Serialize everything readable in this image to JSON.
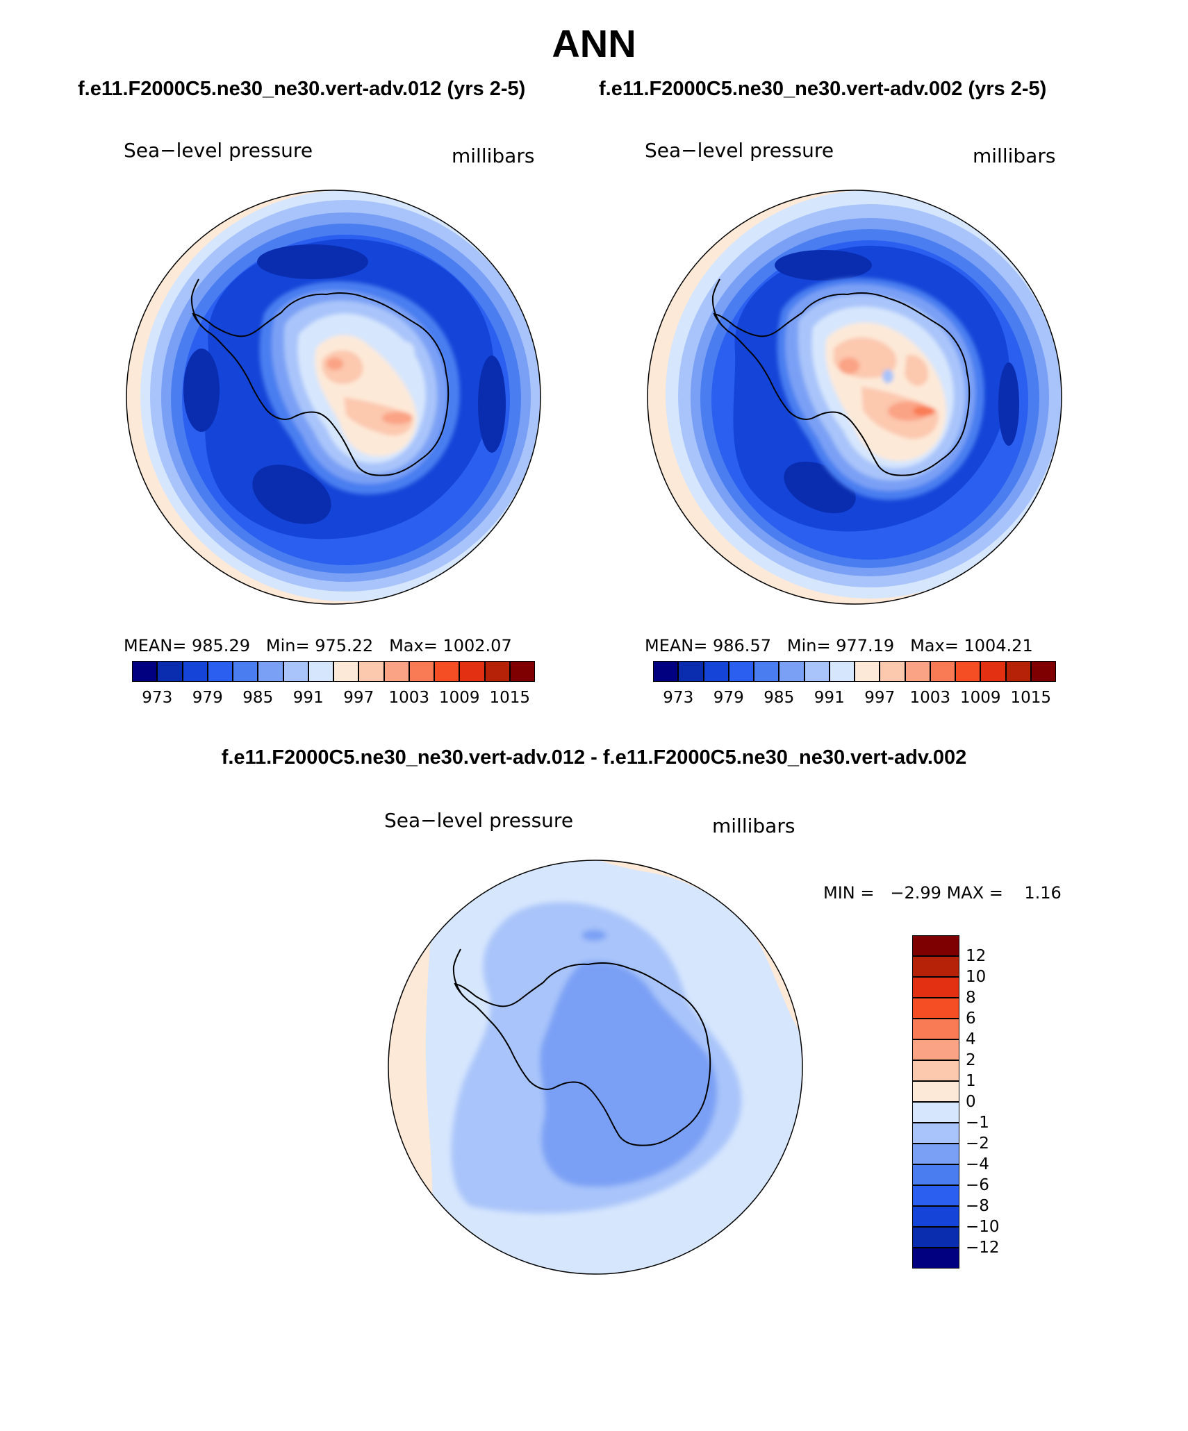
{
  "title": "ANN",
  "case_titles": {
    "left": "f.e11.F2000C5.ne30_ne30.vert-adv.012 (yrs 2-5)",
    "right": "f.e11.F2000C5.ne30_ne30.vert-adv.002 (yrs 2-5)"
  },
  "diff_title": "f.e11.F2000C5.ne30_ne30.vert-adv.012 - f.e11.F2000C5.ne30_ne30.vert-adv.002",
  "panels": [
    {
      "variable": "Sea−level pressure",
      "units": "millibars",
      "stats": {
        "mean_label": "MEAN=",
        "mean": "985.29",
        "min_label": "Min=",
        "min": "975.22",
        "max_label": "Max=",
        "max": "1002.07"
      }
    },
    {
      "variable": "Sea−level pressure",
      "units": "millibars",
      "stats": {
        "mean_label": "MEAN=",
        "mean": "986.57",
        "min_label": "Min=",
        "min": "977.19",
        "max_label": "Max=",
        "max": "1004.21"
      }
    }
  ],
  "diff_panel": {
    "variable": "Sea−level pressure",
    "units": "millibars",
    "min_label": "MIN =",
    "min": "−2.99",
    "max_label": "MAX =",
    "max": "1.16"
  },
  "colorbar_main": {
    "colors": [
      "#000080",
      "#0a2db0",
      "#1445d8",
      "#2b5ff0",
      "#4a7ef0",
      "#7aa0f5",
      "#a9c4fa",
      "#d6e6fd",
      "#fde9d8",
      "#fcc8ae",
      "#fba385",
      "#f97b55",
      "#f54e24",
      "#e43012",
      "#b52208",
      "#7f0000"
    ],
    "labels": [
      "973",
      "979",
      "985",
      "991",
      "997",
      "1003",
      "1009",
      "1015"
    ]
  },
  "colorbar_diff": {
    "colors_top_to_bottom": [
      "#7f0000",
      "#b52208",
      "#e43012",
      "#f54e24",
      "#f97b55",
      "#fba385",
      "#fcc8ae",
      "#fde9d8",
      "#d6e6fd",
      "#a9c4fa",
      "#7aa0f5",
      "#4a7ef0",
      "#2b5ff0",
      "#1445d8",
      "#0a2db0",
      "#000080"
    ],
    "labels": [
      "12",
      "10",
      "8",
      "6",
      "4",
      "2",
      "1",
      "0",
      "−1",
      "−2",
      "−4",
      "−6",
      "−8",
      "−10",
      "−12"
    ]
  }
}
